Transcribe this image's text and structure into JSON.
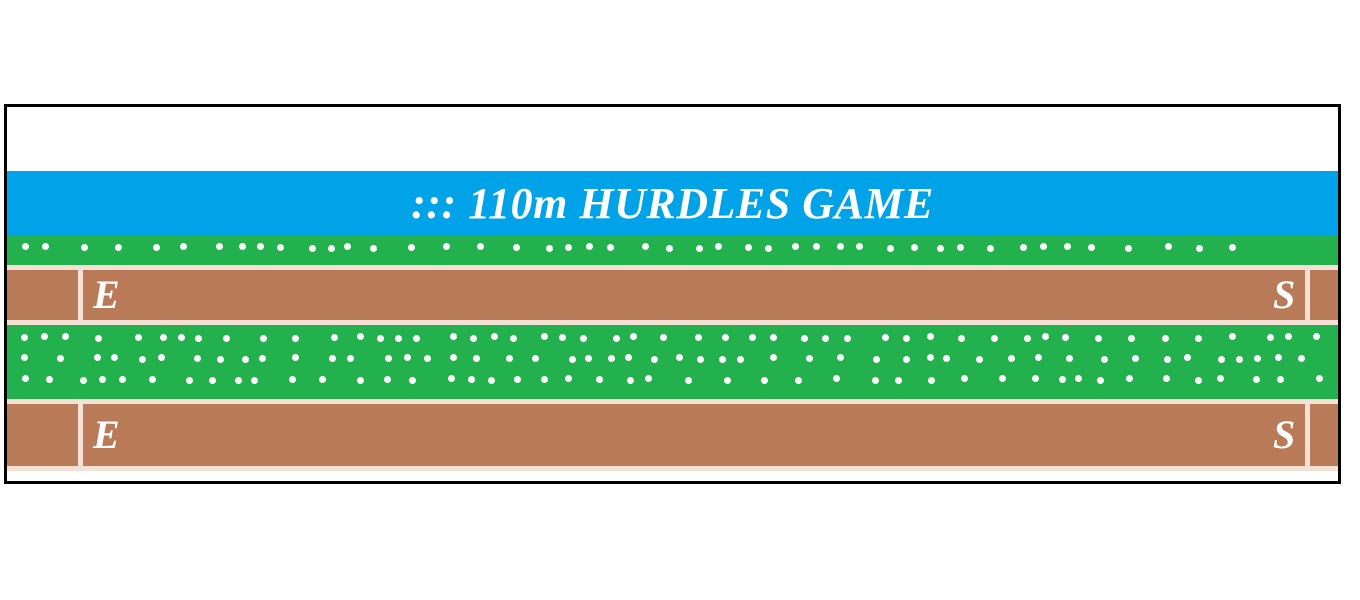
{
  "game": {
    "title": "::: 110m HURDLES GAME",
    "lanes": [
      {
        "end_label": "E",
        "start_label": "S"
      },
      {
        "end_label": "E",
        "start_label": "S"
      }
    ]
  },
  "colors": {
    "sky": "#ffffff",
    "banner": "#00a2e8",
    "grass": "#22b14c",
    "track": "#b97a57",
    "lines": "#f5e0d5",
    "frame": "#000000"
  }
}
